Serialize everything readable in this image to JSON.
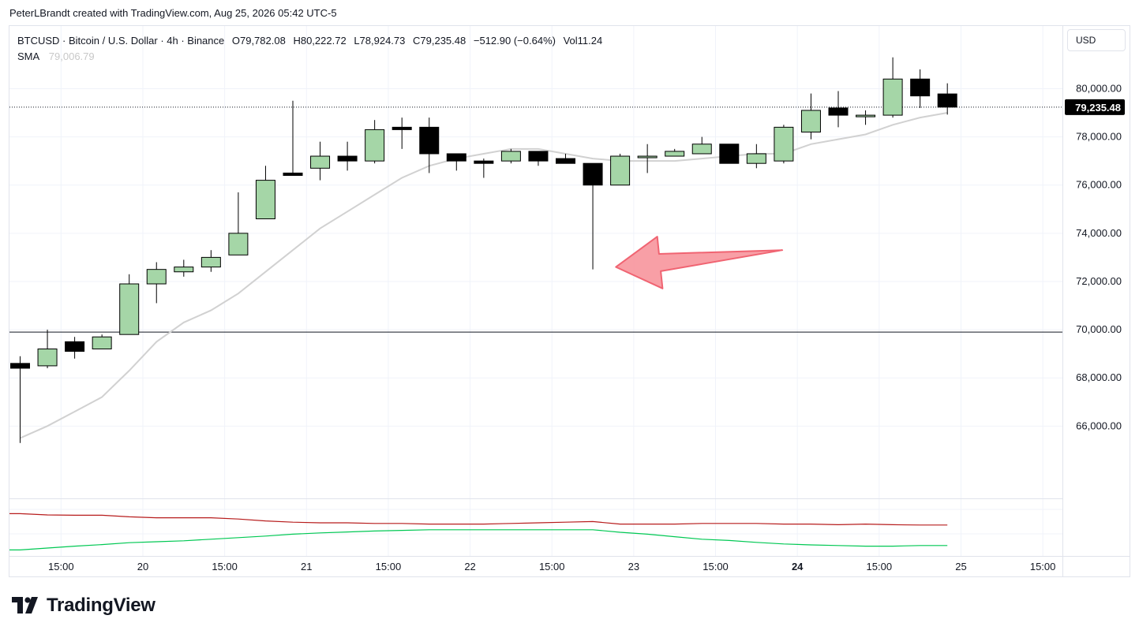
{
  "header": {
    "credit": "PeterLBrandt created with TradingView.com, Aug 25, 2026 05:42 UTC-5"
  },
  "legend": {
    "symbol": "BTCUSD · Bitcoin / U.S. Dollar · 4h · Binance",
    "open": "O79,782.08",
    "high": "H80,222.72",
    "low": "L78,924.73",
    "close": "C79,235.48",
    "change": "−512.90 (−0.64%)",
    "volume": "Vol11.24",
    "sma_label": "SMA",
    "sma_value": "79,006.79"
  },
  "currency_button": {
    "label": "USD"
  },
  "brand": {
    "name": "TradingView",
    "logo": "tradingview-logo-icon"
  },
  "colors": {
    "up_fill": "#a5d6a7",
    "down_fill": "#000000",
    "wick": "#000000",
    "sma": "#d1d1d1",
    "indicator_red": "#b71c1c",
    "indicator_green": "#00c853",
    "arrow_fill": "#f7959c",
    "arrow_stroke": "#f06472",
    "grid": "#f0f3fa"
  },
  "chart_data": {
    "type": "candlestick",
    "interval": "4h",
    "y_range": [
      63000,
      82600
    ],
    "y_ticks": [
      "80,000.00",
      "78,000.00",
      "76,000.00",
      "74,000.00",
      "72,000.00",
      "70,000.00",
      "68,000.00",
      "66,000.00"
    ],
    "y_tick_values": [
      80000,
      78000,
      76000,
      74000,
      72000,
      70000,
      68000,
      66000
    ],
    "x_ticks": [
      {
        "label": "15:00",
        "bar": 1.5,
        "bold": false
      },
      {
        "label": "20",
        "bar": 4.5,
        "bold": false
      },
      {
        "label": "15:00",
        "bar": 7.5,
        "bold": false
      },
      {
        "label": "21",
        "bar": 10.5,
        "bold": false
      },
      {
        "label": "15:00",
        "bar": 13.5,
        "bold": false
      },
      {
        "label": "22",
        "bar": 16.5,
        "bold": false
      },
      {
        "label": "15:00",
        "bar": 19.5,
        "bold": false
      },
      {
        "label": "23",
        "bar": 22.5,
        "bold": false
      },
      {
        "label": "15:00",
        "bar": 25.5,
        "bold": false
      },
      {
        "label": "24",
        "bar": 28.5,
        "bold": true
      },
      {
        "label": "15:00",
        "bar": 31.5,
        "bold": false
      },
      {
        "label": "25",
        "bar": 34.5,
        "bold": false
      },
      {
        "label": "15:00",
        "bar": 37.5,
        "bold": false
      }
    ],
    "candles": [
      {
        "o": 68600,
        "h": 68900,
        "l": 65300,
        "c": 68400
      },
      {
        "o": 68500,
        "h": 70000,
        "l": 68400,
        "c": 69200
      },
      {
        "o": 69500,
        "h": 69700,
        "l": 68800,
        "c": 69100
      },
      {
        "o": 69200,
        "h": 69800,
        "l": 69200,
        "c": 69700
      },
      {
        "o": 69800,
        "h": 72300,
        "l": 69800,
        "c": 71900
      },
      {
        "o": 71900,
        "h": 72800,
        "l": 71100,
        "c": 72500
      },
      {
        "o": 72400,
        "h": 72900,
        "l": 72200,
        "c": 72600
      },
      {
        "o": 72600,
        "h": 73300,
        "l": 72400,
        "c": 73000
      },
      {
        "o": 73100,
        "h": 75700,
        "l": 73100,
        "c": 74000
      },
      {
        "o": 74600,
        "h": 76800,
        "l": 74600,
        "c": 76200
      },
      {
        "o": 76500,
        "h": 79500,
        "l": 76400,
        "c": 76400
      },
      {
        "o": 76700,
        "h": 77800,
        "l": 76200,
        "c": 77200
      },
      {
        "o": 77200,
        "h": 77800,
        "l": 76600,
        "c": 77000
      },
      {
        "o": 77000,
        "h": 78700,
        "l": 76900,
        "c": 78300
      },
      {
        "o": 78400,
        "h": 78800,
        "l": 77500,
        "c": 78300
      },
      {
        "o": 78400,
        "h": 78800,
        "l": 76500,
        "c": 77300
      },
      {
        "o": 77300,
        "h": 77300,
        "l": 76600,
        "c": 77000
      },
      {
        "o": 77000,
        "h": 77100,
        "l": 76300,
        "c": 76900
      },
      {
        "o": 77000,
        "h": 77500,
        "l": 76900,
        "c": 77400
      },
      {
        "o": 77400,
        "h": 77400,
        "l": 76800,
        "c": 77000
      },
      {
        "o": 77100,
        "h": 77300,
        "l": 76900,
        "c": 76900
      },
      {
        "o": 76900,
        "h": 76900,
        "l": 72500,
        "c": 76000
      },
      {
        "o": 76000,
        "h": 77300,
        "l": 76000,
        "c": 77200
      },
      {
        "o": 77200,
        "h": 77700,
        "l": 76500,
        "c": 77200
      },
      {
        "o": 77200,
        "h": 77500,
        "l": 77200,
        "c": 77400
      },
      {
        "o": 77300,
        "h": 78000,
        "l": 77300,
        "c": 77700
      },
      {
        "o": 77700,
        "h": 77700,
        "l": 76900,
        "c": 76900
      },
      {
        "o": 76900,
        "h": 77700,
        "l": 76700,
        "c": 77300
      },
      {
        "o": 77000,
        "h": 78500,
        "l": 76900,
        "c": 78400
      },
      {
        "o": 78200,
        "h": 79800,
        "l": 77900,
        "c": 79100
      },
      {
        "o": 79200,
        "h": 79900,
        "l": 78400,
        "c": 78900
      },
      {
        "o": 78900,
        "h": 79100,
        "l": 78500,
        "c": 78900
      },
      {
        "o": 78900,
        "h": 81300,
        "l": 78800,
        "c": 80400
      },
      {
        "o": 80400,
        "h": 80800,
        "l": 79200,
        "c": 79700
      },
      {
        "o": 79782.08,
        "h": 80222.72,
        "l": 78924.73,
        "c": 79235.48
      }
    ],
    "sma": [
      65500,
      66000,
      66600,
      67200,
      68300,
      69500,
      70300,
      70800,
      71500,
      72400,
      73300,
      74200,
      74900,
      75600,
      76300,
      76800,
      77100,
      77300,
      77500,
      77500,
      77300,
      77100,
      77000,
      77000,
      77000,
      77100,
      77200,
      77300,
      77300,
      77700,
      77900,
      78100,
      78500,
      78800,
      79000
    ],
    "last_price": 79235.48,
    "last_price_label": "79,235.48",
    "horizontal_line": 69900,
    "arrow_annotation": {
      "tip": [
        21.5,
        72600
      ],
      "tail": [
        27.6,
        73300
      ],
      "color": "red-transparent"
    },
    "indicator": {
      "red_series": [
        0.29,
        0.25,
        0.24,
        0.24,
        0.19,
        0.16,
        0.16,
        0.16,
        0.12,
        0.06,
        0.02,
        0.0,
        0.0,
        -0.02,
        -0.02,
        -0.04,
        -0.04,
        -0.04,
        -0.02,
        -0.0,
        0.02,
        0.04,
        -0.04,
        -0.04,
        -0.04,
        -0.02,
        -0.02,
        -0.02,
        -0.04,
        -0.04,
        -0.06,
        -0.04,
        -0.06,
        -0.07,
        -0.07
      ],
      "green_series": [
        -0.86,
        -0.8,
        -0.74,
        -0.69,
        -0.63,
        -0.6,
        -0.57,
        -0.52,
        -0.47,
        -0.42,
        -0.36,
        -0.32,
        -0.29,
        -0.26,
        -0.24,
        -0.22,
        -0.22,
        -0.22,
        -0.22,
        -0.22,
        -0.22,
        -0.22,
        -0.3,
        -0.36,
        -0.44,
        -0.52,
        -0.56,
        -0.62,
        -0.67,
        -0.7,
        -0.72,
        -0.74,
        -0.74,
        -0.72,
        -0.72
      ]
    }
  }
}
